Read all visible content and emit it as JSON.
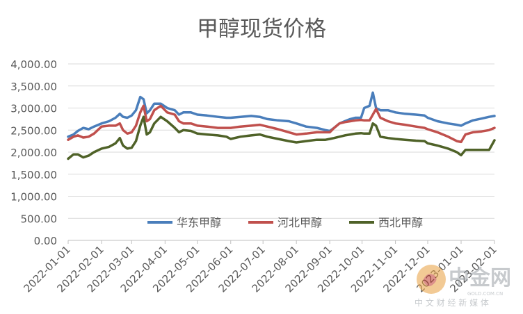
{
  "chart_data": {
    "type": "line",
    "title": "甲醇现货价格",
    "xlabel": "",
    "ylabel": "",
    "ylim": [
      0,
      4000
    ],
    "y_ticks": [
      "0.00",
      "500.00",
      "1,000.00",
      "1,500.00",
      "2,000.00",
      "2,500.00",
      "3,000.00",
      "3,500.00",
      "4,000.00"
    ],
    "x_ticks": [
      "2022-01-01",
      "2022-02-01",
      "2022-03-01",
      "2022-04-01",
      "2022-05-01",
      "2022-06-01",
      "2022-07-01",
      "2022-08-01",
      "2022-09-01",
      "2022-10-01",
      "2022-11-01",
      "2022-12-01",
      "2023-01-01",
      "2023-02-01"
    ],
    "grid": true,
    "legend_position": "bottom-inside",
    "series": [
      {
        "name": "华东甲醇",
        "color": "#4a7ebb",
        "points": [
          [
            "2022-01-01",
            2350
          ],
          [
            "2022-01-06",
            2400
          ],
          [
            "2022-01-10",
            2480
          ],
          [
            "2022-01-15",
            2550
          ],
          [
            "2022-01-20",
            2520
          ],
          [
            "2022-01-25",
            2580
          ],
          [
            "2022-02-01",
            2650
          ],
          [
            "2022-02-08",
            2700
          ],
          [
            "2022-02-14",
            2780
          ],
          [
            "2022-02-18",
            2870
          ],
          [
            "2022-02-21",
            2800
          ],
          [
            "2022-02-25",
            2780
          ],
          [
            "2022-03-01",
            2830
          ],
          [
            "2022-03-05",
            2950
          ],
          [
            "2022-03-09",
            3250
          ],
          [
            "2022-03-12",
            3200
          ],
          [
            "2022-03-15",
            2880
          ],
          [
            "2022-03-18",
            2950
          ],
          [
            "2022-03-22",
            3100
          ],
          [
            "2022-03-28",
            3100
          ],
          [
            "2022-04-03",
            3000
          ],
          [
            "2022-04-10",
            2950
          ],
          [
            "2022-04-14",
            2850
          ],
          [
            "2022-04-18",
            2900
          ],
          [
            "2022-04-25",
            2900
          ],
          [
            "2022-05-01",
            2850
          ],
          [
            "2022-05-10",
            2830
          ],
          [
            "2022-05-20",
            2800
          ],
          [
            "2022-05-28",
            2780
          ],
          [
            "2022-06-01",
            2780
          ],
          [
            "2022-06-10",
            2800
          ],
          [
            "2022-06-20",
            2820
          ],
          [
            "2022-06-28",
            2800
          ],
          [
            "2022-07-05",
            2750
          ],
          [
            "2022-07-15",
            2720
          ],
          [
            "2022-07-25",
            2700
          ],
          [
            "2022-08-01",
            2650
          ],
          [
            "2022-08-10",
            2580
          ],
          [
            "2022-08-20",
            2550
          ],
          [
            "2022-08-28",
            2500
          ],
          [
            "2022-09-01",
            2480
          ],
          [
            "2022-09-05",
            2550
          ],
          [
            "2022-09-10",
            2650
          ],
          [
            "2022-09-15",
            2700
          ],
          [
            "2022-09-20",
            2750
          ],
          [
            "2022-09-25",
            2780
          ],
          [
            "2022-09-30",
            2780
          ],
          [
            "2022-10-03",
            3000
          ],
          [
            "2022-10-08",
            3050
          ],
          [
            "2022-10-11",
            3350
          ],
          [
            "2022-10-14",
            3000
          ],
          [
            "2022-10-18",
            2950
          ],
          [
            "2022-10-25",
            2950
          ],
          [
            "2022-11-01",
            2900
          ],
          [
            "2022-11-10",
            2870
          ],
          [
            "2022-11-20",
            2850
          ],
          [
            "2022-11-28",
            2830
          ],
          [
            "2022-12-01",
            2780
          ],
          [
            "2022-12-10",
            2700
          ],
          [
            "2022-12-20",
            2650
          ],
          [
            "2022-12-28",
            2620
          ],
          [
            "2023-01-01",
            2600
          ],
          [
            "2023-01-05",
            2650
          ],
          [
            "2023-01-12",
            2720
          ],
          [
            "2023-01-20",
            2760
          ],
          [
            "2023-01-27",
            2800
          ],
          [
            "2023-02-01",
            2820
          ]
        ]
      },
      {
        "name": "河北甲醇",
        "color": "#c0504d",
        "points": [
          [
            "2022-01-01",
            2280
          ],
          [
            "2022-01-06",
            2350
          ],
          [
            "2022-01-10",
            2380
          ],
          [
            "2022-01-15",
            2330
          ],
          [
            "2022-01-20",
            2350
          ],
          [
            "2022-01-25",
            2420
          ],
          [
            "2022-02-01",
            2580
          ],
          [
            "2022-02-08",
            2600
          ],
          [
            "2022-02-14",
            2600
          ],
          [
            "2022-02-18",
            2650
          ],
          [
            "2022-02-21",
            2500
          ],
          [
            "2022-02-25",
            2420
          ],
          [
            "2022-03-01",
            2450
          ],
          [
            "2022-03-05",
            2600
          ],
          [
            "2022-03-09",
            2900
          ],
          [
            "2022-03-12",
            3050
          ],
          [
            "2022-03-15",
            2700
          ],
          [
            "2022-03-18",
            2750
          ],
          [
            "2022-03-22",
            2950
          ],
          [
            "2022-03-28",
            3050
          ],
          [
            "2022-04-03",
            2900
          ],
          [
            "2022-04-10",
            2850
          ],
          [
            "2022-04-14",
            2700
          ],
          [
            "2022-04-18",
            2650
          ],
          [
            "2022-04-25",
            2650
          ],
          [
            "2022-05-01",
            2600
          ],
          [
            "2022-05-10",
            2580
          ],
          [
            "2022-05-20",
            2550
          ],
          [
            "2022-05-28",
            2550
          ],
          [
            "2022-06-01",
            2550
          ],
          [
            "2022-06-10",
            2580
          ],
          [
            "2022-06-20",
            2600
          ],
          [
            "2022-06-28",
            2620
          ],
          [
            "2022-07-05",
            2580
          ],
          [
            "2022-07-15",
            2520
          ],
          [
            "2022-07-25",
            2450
          ],
          [
            "2022-08-01",
            2400
          ],
          [
            "2022-08-10",
            2420
          ],
          [
            "2022-08-20",
            2450
          ],
          [
            "2022-08-28",
            2450
          ],
          [
            "2022-09-01",
            2450
          ],
          [
            "2022-09-05",
            2550
          ],
          [
            "2022-09-10",
            2650
          ],
          [
            "2022-09-15",
            2680
          ],
          [
            "2022-09-20",
            2700
          ],
          [
            "2022-09-25",
            2720
          ],
          [
            "2022-09-30",
            2730
          ],
          [
            "2022-10-03",
            2720
          ],
          [
            "2022-10-08",
            2720
          ],
          [
            "2022-10-11",
            2850
          ],
          [
            "2022-10-14",
            2980
          ],
          [
            "2022-10-18",
            2780
          ],
          [
            "2022-10-25",
            2700
          ],
          [
            "2022-11-01",
            2650
          ],
          [
            "2022-11-10",
            2620
          ],
          [
            "2022-11-20",
            2580
          ],
          [
            "2022-11-28",
            2550
          ],
          [
            "2022-12-01",
            2520
          ],
          [
            "2022-12-10",
            2450
          ],
          [
            "2022-12-20",
            2350
          ],
          [
            "2022-12-28",
            2250
          ],
          [
            "2023-01-01",
            2230
          ],
          [
            "2023-01-05",
            2400
          ],
          [
            "2023-01-12",
            2450
          ],
          [
            "2023-01-20",
            2470
          ],
          [
            "2023-01-27",
            2500
          ],
          [
            "2023-02-01",
            2550
          ]
        ]
      },
      {
        "name": "西北甲醇",
        "color": "#4f6228",
        "points": [
          [
            "2022-01-01",
            1850
          ],
          [
            "2022-01-06",
            1950
          ],
          [
            "2022-01-10",
            1950
          ],
          [
            "2022-01-15",
            1880
          ],
          [
            "2022-01-20",
            1920
          ],
          [
            "2022-01-25",
            2000
          ],
          [
            "2022-02-01",
            2080
          ],
          [
            "2022-02-08",
            2120
          ],
          [
            "2022-02-14",
            2200
          ],
          [
            "2022-02-18",
            2320
          ],
          [
            "2022-02-21",
            2150
          ],
          [
            "2022-02-25",
            2080
          ],
          [
            "2022-03-01",
            2100
          ],
          [
            "2022-03-05",
            2250
          ],
          [
            "2022-03-09",
            2600
          ],
          [
            "2022-03-12",
            2800
          ],
          [
            "2022-03-15",
            2400
          ],
          [
            "2022-03-18",
            2450
          ],
          [
            "2022-03-22",
            2650
          ],
          [
            "2022-03-28",
            2800
          ],
          [
            "2022-04-03",
            2700
          ],
          [
            "2022-04-10",
            2550
          ],
          [
            "2022-04-14",
            2450
          ],
          [
            "2022-04-18",
            2500
          ],
          [
            "2022-04-25",
            2480
          ],
          [
            "2022-05-01",
            2420
          ],
          [
            "2022-05-10",
            2400
          ],
          [
            "2022-05-20",
            2380
          ],
          [
            "2022-05-28",
            2350
          ],
          [
            "2022-06-01",
            2300
          ],
          [
            "2022-06-10",
            2350
          ],
          [
            "2022-06-20",
            2380
          ],
          [
            "2022-06-28",
            2400
          ],
          [
            "2022-07-05",
            2350
          ],
          [
            "2022-07-15",
            2300
          ],
          [
            "2022-07-25",
            2250
          ],
          [
            "2022-08-01",
            2220
          ],
          [
            "2022-08-10",
            2250
          ],
          [
            "2022-08-20",
            2280
          ],
          [
            "2022-08-28",
            2280
          ],
          [
            "2022-09-01",
            2300
          ],
          [
            "2022-09-05",
            2320
          ],
          [
            "2022-09-10",
            2350
          ],
          [
            "2022-09-15",
            2380
          ],
          [
            "2022-09-20",
            2400
          ],
          [
            "2022-09-25",
            2420
          ],
          [
            "2022-09-30",
            2430
          ],
          [
            "2022-10-03",
            2420
          ],
          [
            "2022-10-08",
            2420
          ],
          [
            "2022-10-11",
            2650
          ],
          [
            "2022-10-14",
            2600
          ],
          [
            "2022-10-18",
            2350
          ],
          [
            "2022-10-25",
            2320
          ],
          [
            "2022-11-01",
            2300
          ],
          [
            "2022-11-10",
            2280
          ],
          [
            "2022-11-20",
            2260
          ],
          [
            "2022-11-28",
            2250
          ],
          [
            "2022-12-01",
            2200
          ],
          [
            "2022-12-10",
            2150
          ],
          [
            "2022-12-20",
            2080
          ],
          [
            "2022-12-28",
            2000
          ],
          [
            "2023-01-01",
            1930
          ],
          [
            "2023-01-05",
            2050
          ],
          [
            "2023-01-12",
            2050
          ],
          [
            "2023-01-20",
            2050
          ],
          [
            "2023-01-27",
            2050
          ],
          [
            "2023-02-01",
            2270
          ]
        ]
      }
    ]
  },
  "watermark": {
    "brand": "中金网",
    "tagline": "中 文 财 经 新 媒 体",
    "url": "GOLD.COM.CN"
  }
}
